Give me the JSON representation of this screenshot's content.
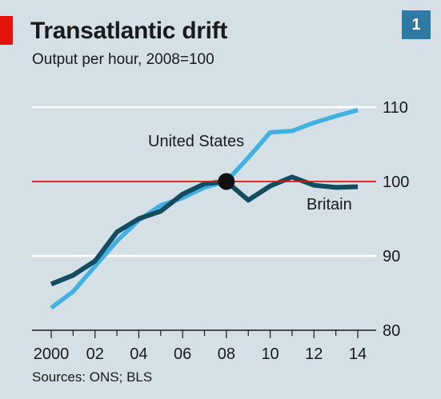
{
  "header": {
    "title": "Transatlantic drift",
    "subtitle": "Output per hour, 2008=100",
    "badge": "1"
  },
  "footer": {
    "source": "Sources: ONS; BLS"
  },
  "colors": {
    "background": "#d4e0e6",
    "us_line": "#3fb1e3",
    "britain_line": "#134b5f",
    "reference_line": "#e3120b",
    "grid": "#ffffff"
  },
  "chart_data": {
    "type": "line",
    "title": "Transatlantic drift",
    "subtitle": "Output per hour, 2008=100",
    "xlabel": "",
    "ylabel": "",
    "xlim": [
      2000,
      2014
    ],
    "ylim": [
      80,
      110
    ],
    "x_tick_labels": [
      "2000",
      "02",
      "04",
      "06",
      "08",
      "10",
      "12",
      "14"
    ],
    "y_tick_labels": [
      "80",
      "90",
      "100",
      "110"
    ],
    "reference_value": 100,
    "highlight_point": {
      "x": 2008,
      "y": 100
    },
    "grid": true,
    "series": [
      {
        "name": "United States",
        "x": [
          2000,
          2001,
          2002,
          2003,
          2004,
          2005,
          2006,
          2007,
          2008,
          2009,
          2010,
          2011,
          2012,
          2013,
          2014
        ],
        "values": [
          83,
          85.2,
          88.6,
          92,
          94.8,
          96.8,
          97.8,
          99.2,
          100,
          103.2,
          106.6,
          106.8,
          107.9,
          108.8,
          109.6
        ]
      },
      {
        "name": "Britain",
        "x": [
          2000,
          2001,
          2002,
          2003,
          2004,
          2005,
          2006,
          2007,
          2008,
          2009,
          2010,
          2011,
          2012,
          2013,
          2014
        ],
        "values": [
          86.2,
          87.4,
          89.3,
          93.2,
          95,
          96,
          98.3,
          99.7,
          100,
          97.5,
          99.4,
          100.6,
          99.5,
          99.2,
          99.3
        ]
      }
    ]
  }
}
